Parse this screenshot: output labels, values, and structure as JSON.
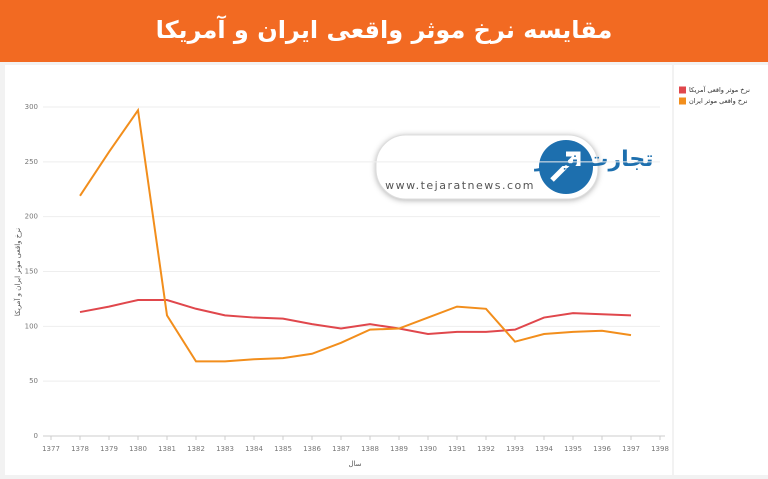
{
  "chart_data": {
    "type": "line",
    "title": "مقایسه نرخ موثر واقعی ایران و آمریکا",
    "x_label": "سال",
    "y_label": "نرخ واقعی موثر ایران و آمریکا",
    "annotations": [
      "تجارت نیوز",
      "www.tejaratnews.com"
    ],
    "x": [
      1378,
      1379,
      1380,
      1381,
      1382,
      1383,
      1384,
      1385,
      1386,
      1387,
      1388,
      1389,
      1390,
      1391,
      1392,
      1393,
      1394,
      1395,
      1396,
      1397
    ],
    "series": [
      {
        "name": "نرخ موثر واقعی آمریکا",
        "color": "#e0474c",
        "values": [
          113,
          118,
          124,
          124,
          116,
          110,
          108,
          107,
          102,
          98,
          102,
          98,
          93,
          95,
          95,
          97,
          108,
          112,
          111,
          110
        ]
      },
      {
        "name": "نرخ واقعی موثر ایران",
        "color": "#f28e1c",
        "values": [
          219,
          259,
          297,
          110,
          68,
          68,
          70,
          71,
          75,
          85,
          97,
          98,
          108,
          118,
          116,
          86,
          93,
          95,
          96,
          92
        ]
      }
    ],
    "xlim": [
      1377,
      1398
    ],
    "xticks": [
      1377,
      1378,
      1379,
      1380,
      1381,
      1382,
      1383,
      1384,
      1385,
      1386,
      1387,
      1388,
      1389,
      1390,
      1391,
      1392,
      1393,
      1394,
      1395,
      1396,
      1397,
      1398
    ],
    "ylim": [
      0,
      300
    ],
    "yticks": [
      0,
      50,
      100,
      150,
      200,
      250,
      300
    ],
    "grid": true,
    "legend": "right"
  }
}
